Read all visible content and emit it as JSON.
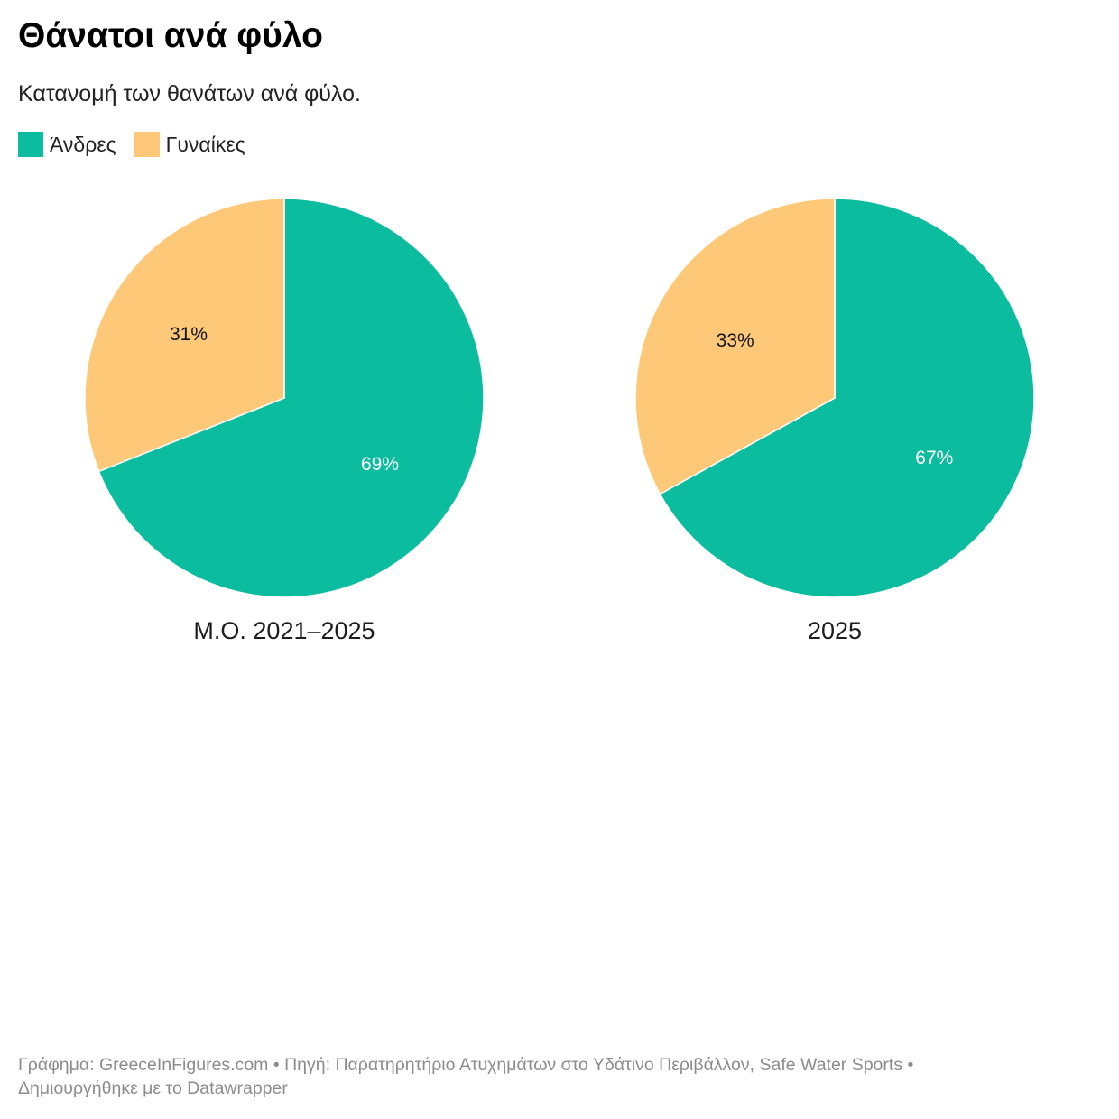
{
  "header": {
    "title": "Θάνατοι ανά φύλο",
    "subtitle": "Κατανομή των θανάτων ανά φύλο."
  },
  "legend": [
    {
      "label": "Άνδρες",
      "color": "#0bbc9f"
    },
    {
      "label": "Γυναίκες",
      "color": "#fdc978"
    }
  ],
  "chart_data": [
    {
      "type": "pie",
      "title": "Μ.Ο. 2021–2025",
      "slices": [
        {
          "name": "Άνδρες",
          "value": 69,
          "label": "69%",
          "color": "#0bbc9f"
        },
        {
          "name": "Γυναίκες",
          "value": 31,
          "label": "31%",
          "color": "#fdc978"
        }
      ]
    },
    {
      "type": "pie",
      "title": "2025",
      "slices": [
        {
          "name": "Άνδρες",
          "value": 67,
          "label": "67%",
          "color": "#0bbc9f"
        },
        {
          "name": "Γυναίκες",
          "value": 33,
          "label": "33%",
          "color": "#fdc978"
        }
      ]
    }
  ],
  "footer": {
    "line1": "Γράφημα: GreeceInFigures.com • Πηγή: Παρατηρητήριο Ατυχημάτων στο Υδάτινο Περιβάλλον, Safe Water Sports •",
    "line2": "Δημιουργήθηκε με το Datawrapper"
  }
}
